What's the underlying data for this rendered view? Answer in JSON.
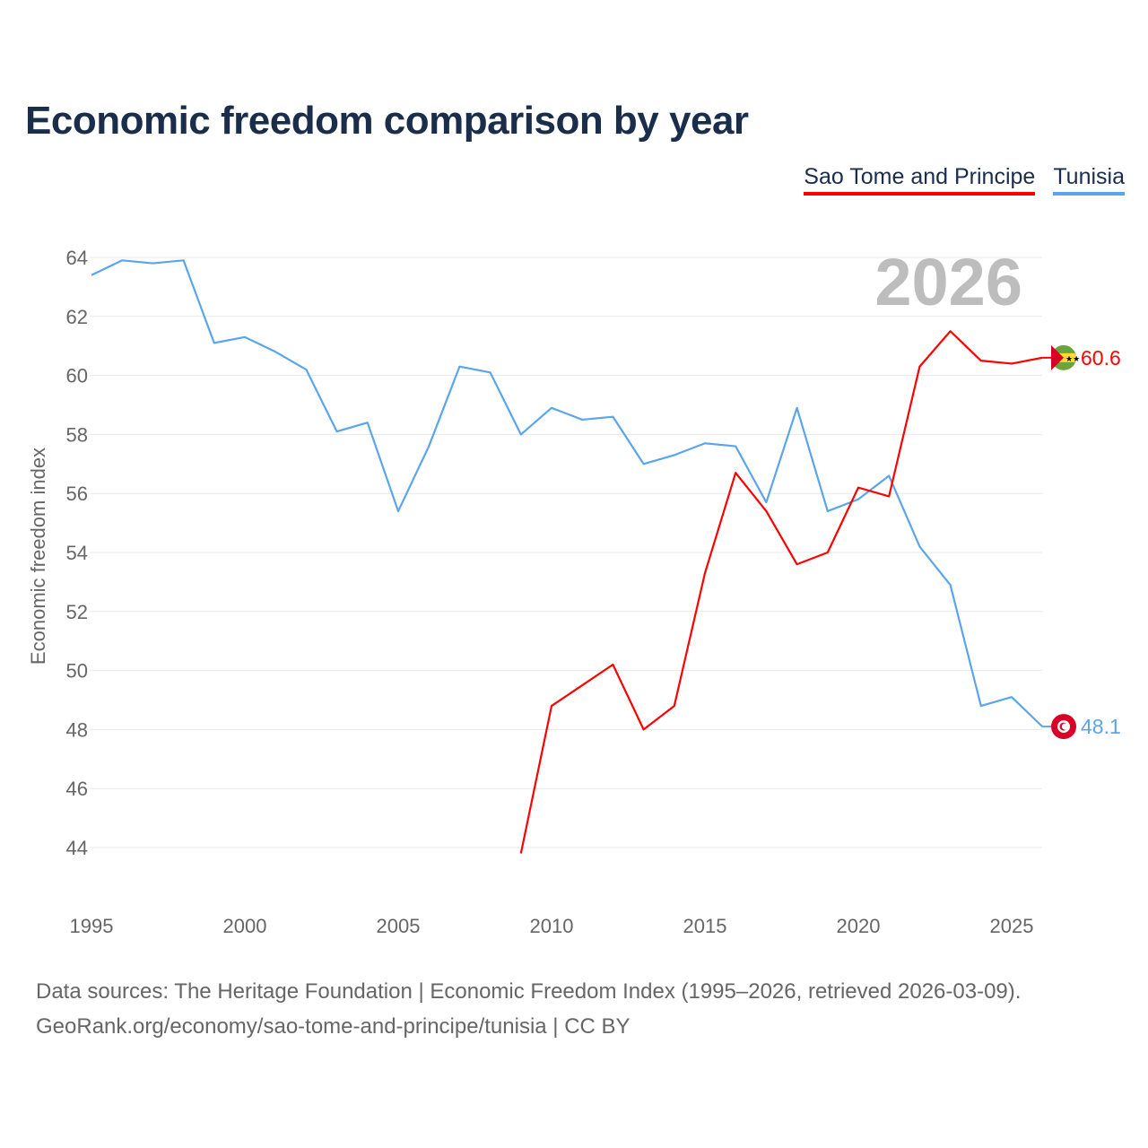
{
  "chart_data": {
    "type": "line",
    "title": "Economic freedom comparison by year",
    "xlabel": "",
    "ylabel": "Economic freedom index",
    "xlim": [
      1995,
      2026
    ],
    "ylim": [
      42.5,
      65
    ],
    "yticks": [
      44,
      46,
      48,
      50,
      52,
      54,
      56,
      58,
      60,
      62,
      64
    ],
    "xticks": [
      1995,
      2000,
      2005,
      2010,
      2015,
      2020,
      2025
    ],
    "grid": true,
    "legend_position": "top-right",
    "year_watermark": "2026",
    "series": [
      {
        "name": "Sao Tome and Principe",
        "color": "#ff0000",
        "end_label": "60.6",
        "x": [
          2009,
          2010,
          2011,
          2012,
          2013,
          2014,
          2015,
          2016,
          2017,
          2018,
          2019,
          2020,
          2021,
          2022,
          2023,
          2024,
          2025,
          2026
        ],
        "values": [
          43.8,
          48.8,
          49.5,
          50.2,
          48.0,
          48.8,
          53.3,
          56.7,
          55.4,
          53.6,
          54.0,
          56.2,
          55.9,
          60.3,
          61.5,
          60.5,
          60.4,
          60.6
        ]
      },
      {
        "name": "Tunisia",
        "color": "#5ba5ea",
        "end_label": "48.1",
        "x": [
          1995,
          1996,
          1997,
          1998,
          1999,
          2000,
          2001,
          2002,
          2003,
          2004,
          2005,
          2006,
          2007,
          2008,
          2009,
          2010,
          2011,
          2012,
          2013,
          2014,
          2015,
          2016,
          2017,
          2018,
          2019,
          2020,
          2021,
          2022,
          2023,
          2024,
          2025,
          2026
        ],
        "values": [
          63.4,
          63.9,
          63.8,
          63.9,
          61.1,
          61.3,
          60.8,
          60.2,
          58.1,
          58.4,
          55.4,
          57.6,
          60.3,
          60.1,
          58.0,
          58.9,
          58.5,
          58.6,
          57.0,
          57.3,
          57.7,
          57.6,
          55.7,
          58.9,
          55.4,
          55.8,
          56.6,
          54.2,
          52.9,
          48.8,
          49.1,
          48.1
        ]
      }
    ]
  },
  "footer": {
    "line1": "Data sources: The Heritage Foundation | Economic Freedom Index (1995–2026, retrieved 2026-03-09).",
    "line2": "GeoRank.org/economy/sao-tome-and-principe/tunisia | CC BY"
  }
}
